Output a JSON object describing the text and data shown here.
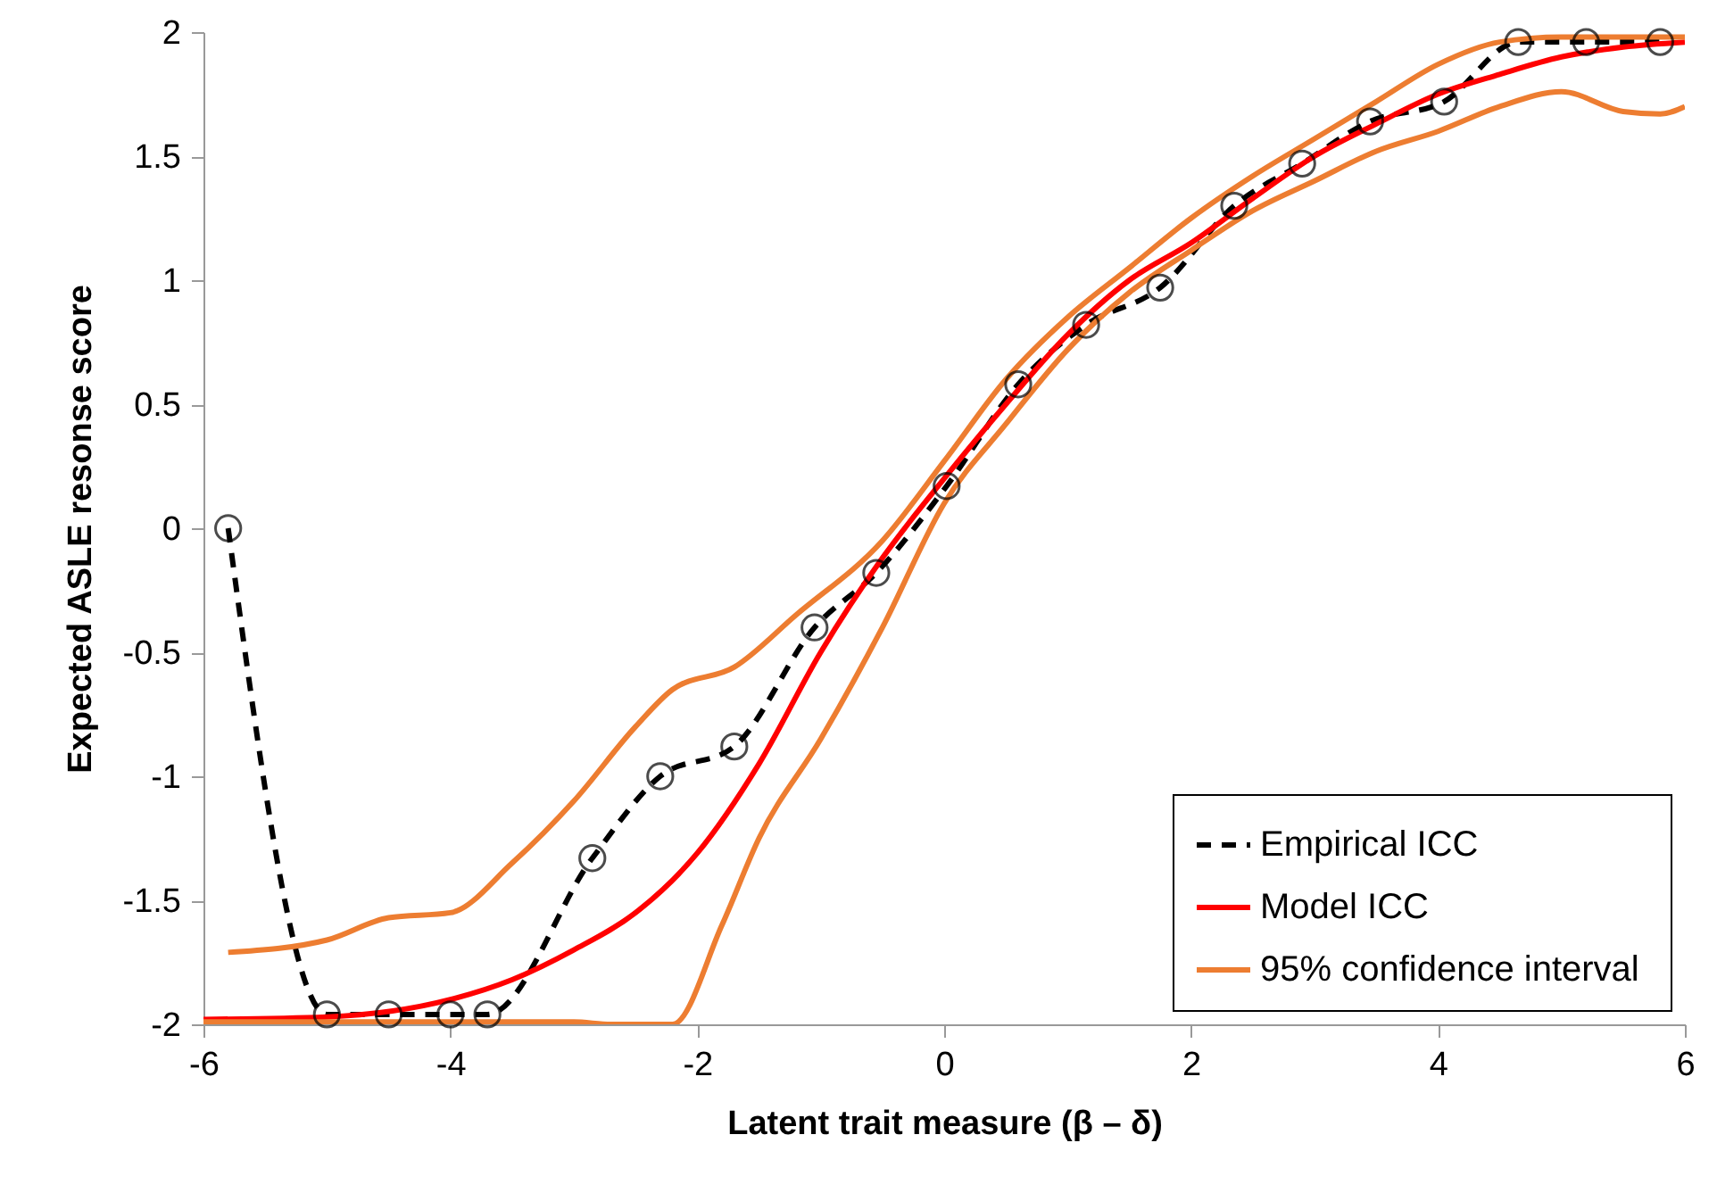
{
  "chart_data": {
    "type": "line",
    "xlabel": "Latent trait measure (β – δ)",
    "ylabel": "Expected ASLE resonse score",
    "xlim": [
      -6,
      6
    ],
    "xticks": [
      -6,
      -4,
      -2,
      0,
      2,
      4,
      6
    ],
    "ylim": [
      -2,
      2
    ],
    "yticks": [
      -2,
      -1.5,
      -1,
      -0.5,
      0,
      0.5,
      1,
      1.5,
      2
    ],
    "grid": false,
    "legend": "bottom right",
    "series": [
      {
        "name": "Empirical ICC",
        "color": "#000000",
        "marker": "circle",
        "line_style": "dashed",
        "x": [
          -5.8,
          -5.0,
          -4.5,
          -4.0,
          -3.7,
          -2.85,
          -2.3,
          -1.7,
          -1.05,
          -0.55,
          0.02,
          0.6,
          1.15,
          1.75,
          2.35,
          2.9,
          3.45,
          4.05,
          4.65,
          5.2,
          5.8
        ],
        "values": [
          0,
          -1.96,
          -1.96,
          -1.96,
          -1.96,
          -1.33,
          -1.0,
          -0.88,
          -0.4,
          -0.18,
          0.17,
          0.58,
          0.82,
          0.97,
          1.3,
          1.47,
          1.64,
          1.72,
          1.96,
          1.96,
          1.96
        ]
      },
      {
        "name": "Model ICC",
        "color": "#ff0000",
        "line_style": "solid",
        "x": [
          -6,
          -5,
          -4,
          -3.5,
          -3,
          -2.5,
          -2,
          -1.5,
          -1,
          -0.5,
          0,
          0.5,
          1,
          1.5,
          2,
          2.5,
          3,
          3.5,
          4,
          4.5,
          5,
          5.5,
          6
        ],
        "values": [
          -1.98,
          -1.97,
          -1.9,
          -1.82,
          -1.7,
          -1.55,
          -1.31,
          -0.95,
          -0.5,
          -0.12,
          0.2,
          0.5,
          0.78,
          1.0,
          1.15,
          1.33,
          1.5,
          1.63,
          1.75,
          1.83,
          1.9,
          1.94,
          1.96
        ]
      },
      {
        "name": "95%  confidence interval",
        "color": "#ed7d31",
        "line_style": "solid",
        "x": [
          -5.8,
          -5,
          -4.5,
          -4,
          -3.5,
          -3,
          -2.5,
          -2.2,
          -1.7,
          -1.2,
          -0.5,
          0,
          0.5,
          1,
          1.5,
          2,
          2.5,
          3,
          3.5,
          4,
          4.5,
          5,
          6
        ],
        "values": [
          -1.71,
          -1.66,
          -1.57,
          -1.55,
          -1.35,
          -1.1,
          -0.8,
          -0.65,
          -0.56,
          -0.35,
          -0.05,
          0.27,
          0.6,
          0.85,
          1.05,
          1.25,
          1.42,
          1.57,
          1.72,
          1.87,
          1.96,
          1.98,
          1.98
        ]
      },
      {
        "color": "#ed7d31",
        "line_style": "solid",
        "x": [
          -6,
          -3,
          -2.7,
          -2.4,
          -2.2,
          -1.8,
          -1.5,
          -1,
          -0.5,
          0,
          0.5,
          1,
          1.5,
          2,
          2.5,
          3,
          3.5,
          4,
          4.5,
          5,
          5.5,
          5.8,
          6
        ],
        "values": [
          -1.99,
          -1.99,
          -2.0,
          -2.0,
          -2.0,
          -1.6,
          -1.25,
          -0.85,
          -0.4,
          0.1,
          0.42,
          0.72,
          0.95,
          1.12,
          1.28,
          1.4,
          1.52,
          1.6,
          1.7,
          1.76,
          1.68,
          1.67,
          1.7
        ]
      }
    ]
  }
}
